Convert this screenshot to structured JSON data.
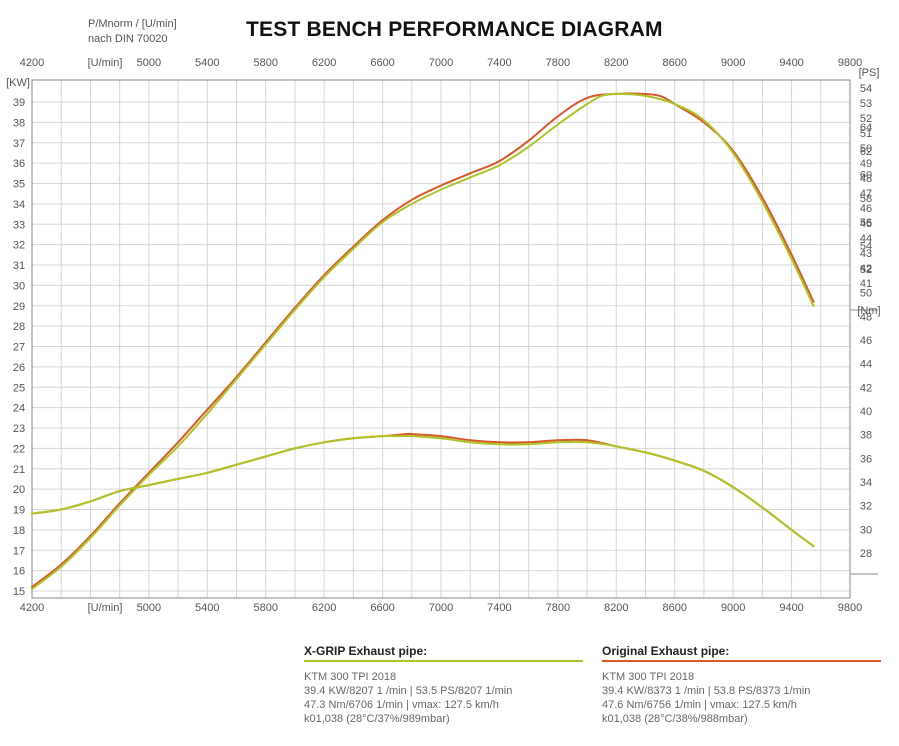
{
  "header": {
    "title": "TEST BENCH PERFORMANCE DIAGRAM",
    "meta_line1": "P/Mnorm / [U/min]",
    "meta_line2": "nach DIN 70020"
  },
  "colors": {
    "xgrip": "#aec424",
    "original": "#d9572a",
    "grid": "#d6d6d6",
    "frame": "#888888"
  },
  "legend": {
    "xgrip": {
      "heading": "X-GRIP Exhaust pipe:",
      "lines": [
        "KTM 300 TPI 2018",
        "39.4 KW/8207 1 /min | 53.5 PS/8207 1/min",
        "47.3 Nm/6706 1/min | vmax: 127.5 km/h",
        "k01,038 (28°C/37%/989mbar)"
      ]
    },
    "original": {
      "heading": "Original Exhaust pipe:",
      "lines": [
        "KTM 300 TPI 2018",
        "39.4 KW/8373 1 /min | 53.8 PS/8373 1/min",
        "47.6 Nm/6756 1/min | vmax: 127.5 km/h",
        "k01,038 (28°C/38%/988mbar)"
      ]
    }
  },
  "chart_data": {
    "type": "line",
    "title": "TEST BENCH PERFORMANCE DIAGRAM",
    "x_unit": "[U/min]",
    "xlim": [
      4200,
      9800
    ],
    "x_ticks": [
      4200,
      5000,
      5400,
      5800,
      6200,
      6600,
      7000,
      7400,
      7800,
      8200,
      8600,
      9000,
      9400,
      9800
    ],
    "left_axis": {
      "unit": "[KW]",
      "ylim": [
        15,
        40
      ],
      "ticks": [
        15,
        16,
        17,
        18,
        19,
        20,
        21,
        22,
        23,
        24,
        25,
        26,
        27,
        28,
        29,
        30,
        31,
        32,
        33,
        34,
        35,
        36,
        37,
        38,
        39
      ]
    },
    "ps_axis": {
      "unit": "[PS]",
      "range": [
        41,
        54
      ],
      "ticks": [
        41,
        42,
        43,
        44,
        45,
        46,
        47,
        48,
        49,
        50,
        51,
        52,
        53,
        54
      ]
    },
    "nm_axis": {
      "unit": "[Nm]",
      "range": [
        28,
        64
      ],
      "ticks": [
        28,
        30,
        32,
        34,
        36,
        38,
        40,
        42,
        44,
        46,
        48,
        50,
        52,
        54,
        56,
        58,
        60,
        62,
        64
      ]
    },
    "grid": true,
    "series": [
      {
        "name": "X-GRIP Exhaust pipe",
        "kind": "power",
        "color_key": "xgrip",
        "x": [
          4200,
          4400,
          4600,
          4800,
          5000,
          5200,
          5400,
          5600,
          5800,
          6000,
          6200,
          6400,
          6600,
          6800,
          7000,
          7200,
          7400,
          7600,
          7800,
          8000,
          8100,
          8207,
          8400,
          8600,
          8800,
          9000,
          9200,
          9400,
          9550
        ],
        "y": [
          15.1,
          16.2,
          17.6,
          19.2,
          20.7,
          22.1,
          23.7,
          25.4,
          27.1,
          28.8,
          30.4,
          31.8,
          33.1,
          34.0,
          34.7,
          35.3,
          35.9,
          36.8,
          37.9,
          38.9,
          39.3,
          39.4,
          39.3,
          38.9,
          38.1,
          36.5,
          34.1,
          31.3,
          29.0
        ]
      },
      {
        "name": "Original Exhaust pipe",
        "kind": "power",
        "color_key": "original",
        "x": [
          4200,
          4400,
          4600,
          4800,
          5000,
          5200,
          5400,
          5600,
          5800,
          6000,
          6200,
          6400,
          6600,
          6800,
          7000,
          7200,
          7400,
          7600,
          7800,
          8000,
          8200,
          8373,
          8500,
          8600,
          8800,
          9000,
          9200,
          9400,
          9550
        ],
        "y": [
          15.2,
          16.3,
          17.7,
          19.3,
          20.8,
          22.3,
          23.9,
          25.5,
          27.2,
          28.9,
          30.5,
          31.9,
          33.2,
          34.2,
          34.9,
          35.5,
          36.1,
          37.1,
          38.3,
          39.2,
          39.4,
          39.4,
          39.3,
          38.9,
          38.0,
          36.6,
          34.3,
          31.5,
          29.2
        ]
      },
      {
        "name": "X-GRIP Exhaust pipe",
        "kind": "torque",
        "color_key": "xgrip",
        "x": [
          4200,
          4400,
          4600,
          4800,
          5000,
          5200,
          5400,
          5600,
          5800,
          6000,
          6200,
          6400,
          6600,
          6706,
          6800,
          7000,
          7200,
          7400,
          7600,
          7800,
          8000,
          8200,
          8400,
          8600,
          8800,
          9000,
          9200,
          9400,
          9550
        ],
        "y": [
          18.8,
          19.0,
          19.4,
          19.9,
          20.2,
          20.5,
          20.8,
          21.2,
          21.6,
          22.0,
          22.3,
          22.5,
          22.6,
          22.6,
          22.6,
          22.5,
          22.3,
          22.2,
          22.2,
          22.3,
          22.3,
          22.1,
          21.8,
          21.4,
          20.9,
          20.1,
          19.1,
          18.0,
          17.2
        ]
      },
      {
        "name": "Original Exhaust pipe",
        "kind": "torque",
        "color_key": "original",
        "x": [
          4200,
          4400,
          4600,
          4800,
          5000,
          5200,
          5400,
          5600,
          5800,
          6000,
          6200,
          6400,
          6600,
          6756,
          6800,
          7000,
          7200,
          7400,
          7600,
          7800,
          8000,
          8200,
          8400,
          8600,
          8800,
          9000,
          9200,
          9400,
          9550
        ],
        "y": [
          18.8,
          19.0,
          19.4,
          19.9,
          20.2,
          20.5,
          20.8,
          21.2,
          21.6,
          22.0,
          22.3,
          22.5,
          22.6,
          22.7,
          22.7,
          22.6,
          22.4,
          22.3,
          22.3,
          22.4,
          22.4,
          22.1,
          21.8,
          21.4,
          20.9,
          20.1,
          19.1,
          18.0,
          17.2
        ]
      }
    ]
  }
}
